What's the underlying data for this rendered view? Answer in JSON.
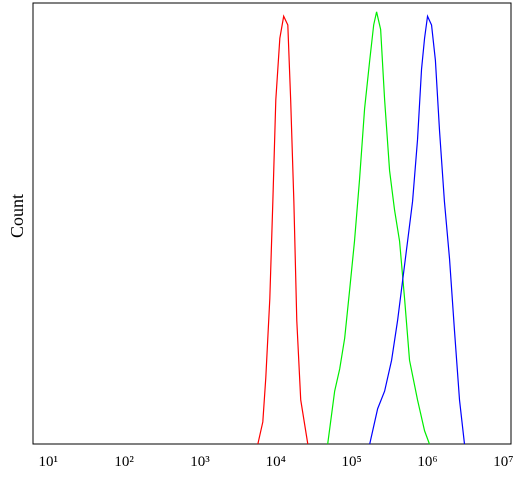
{
  "chart_data": {
    "type": "line",
    "y_label": "Count",
    "xscale": "log",
    "xlim": [
      6.3,
      12600000
    ],
    "ylim": [
      0,
      100
    ],
    "xticks": [
      {
        "value": 10,
        "label": "10¹"
      },
      {
        "value": 100,
        "label": "10²"
      },
      {
        "value": 1000,
        "label": "10³"
      },
      {
        "value": 10000,
        "label": "10⁴"
      },
      {
        "value": 100000,
        "label": "10⁵"
      },
      {
        "value": 1000000,
        "label": "10⁶"
      },
      {
        "value": 10000000,
        "label": "10⁷"
      }
    ],
    "series": [
      {
        "color": "#ff0000",
        "x": [
          5800,
          6740,
          7380,
          8340,
          9140,
          10000,
          11300,
          12700,
          14400,
          15700,
          17300,
          18900,
          21300,
          26400
        ],
        "values": [
          0,
          5,
          15,
          33,
          55,
          78,
          92,
          97,
          95,
          78,
          55,
          28,
          10,
          0
        ]
      },
      {
        "color": "#00ee00",
        "x": [
          48300,
          59700,
          69500,
          80900,
          94100,
          109000,
          127000,
          148000,
          173000,
          195000,
          213000,
          241000,
          272000,
          316000,
          368000,
          428000,
          498000,
          579000,
          738000,
          914000,
          1060000
        ],
        "values": [
          0,
          12,
          17,
          24,
          35,
          46,
          60,
          76,
          87,
          95,
          98,
          94,
          78,
          62,
          53,
          46,
          33,
          19,
          10,
          3,
          0
        ]
      },
      {
        "color": "#0000ff",
        "x": [
          173000,
          220000,
          272000,
          336000,
          403000,
          469000,
          546000,
          635000,
          738000,
          834000,
          914000,
          1000000,
          1130000,
          1270000,
          1440000,
          1670000,
          1950000,
          2260000,
          2640000,
          3070000
        ],
        "values": [
          0,
          8,
          12,
          19,
          28,
          37,
          46,
          55,
          69,
          85,
          92,
          97,
          95,
          87,
          71,
          55,
          42,
          26,
          10,
          0
        ]
      }
    ]
  }
}
